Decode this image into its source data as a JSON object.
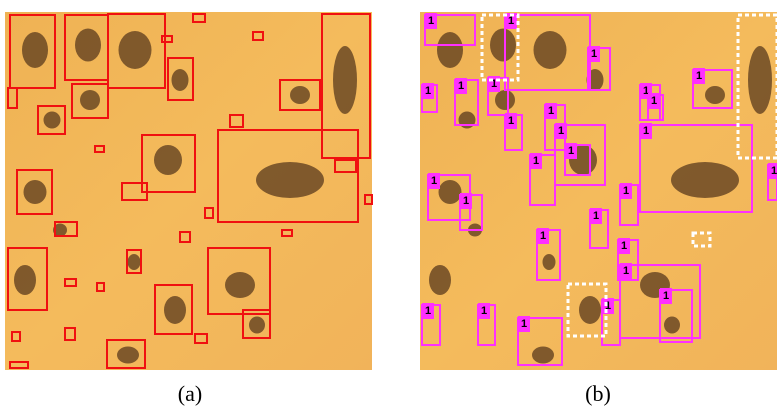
{
  "panels": [
    {
      "caption": "(a)"
    },
    {
      "caption": "(b)"
    }
  ],
  "detection_label": "1"
}
